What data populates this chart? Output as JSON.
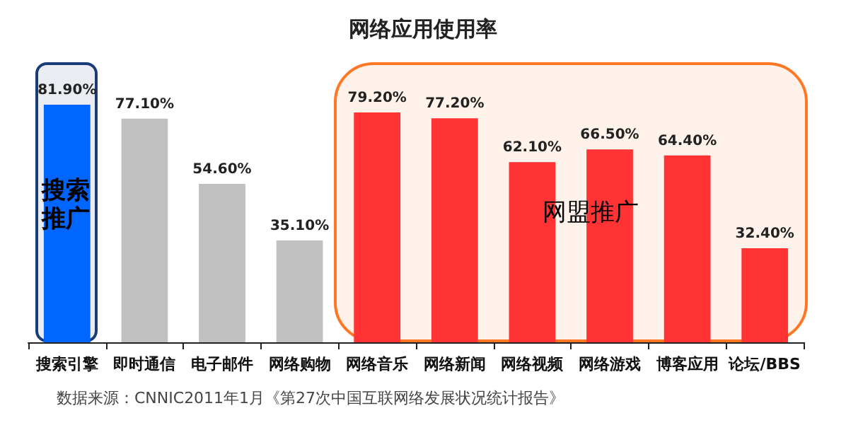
{
  "chart_data": {
    "type": "bar",
    "title": "网络应用使用率",
    "categories": [
      "搜索引擎",
      "即时通信",
      "电子邮件",
      "网络购物",
      "网络音乐",
      "网络新闻",
      "网络视频",
      "网络游戏",
      "博客应用",
      "论坛/BBS"
    ],
    "values": [
      81.9,
      77.1,
      54.6,
      35.1,
      79.2,
      77.2,
      62.1,
      66.5,
      64.4,
      32.4
    ],
    "value_labels": [
      "81.90%",
      "77.10%",
      "54.60%",
      "35.10%",
      "79.20%",
      "77.20%",
      "62.10%",
      "66.50%",
      "64.40%",
      "32.40%"
    ],
    "colors": [
      "#0066ff",
      "#c0c0c0",
      "#c0c0c0",
      "#c0c0c0",
      "#ff3333",
      "#ff3333",
      "#ff3333",
      "#ff3333",
      "#ff3333",
      "#ff3333"
    ],
    "bands": [
      {
        "axis": "x",
        "from": "搜索引擎",
        "to": "搜索引擎",
        "label": "搜索推广",
        "color": "#1a3d7a"
      },
      {
        "axis": "x",
        "from": "网络音乐",
        "to": "论坛/BBS",
        "label": "网盟推广",
        "color": "#ff7722"
      }
    ],
    "annotations": [
      "数据来源：CNNIC2011年1月《第27次中国互联网络发展状况统计报告》"
    ],
    "grid": false
  }
}
